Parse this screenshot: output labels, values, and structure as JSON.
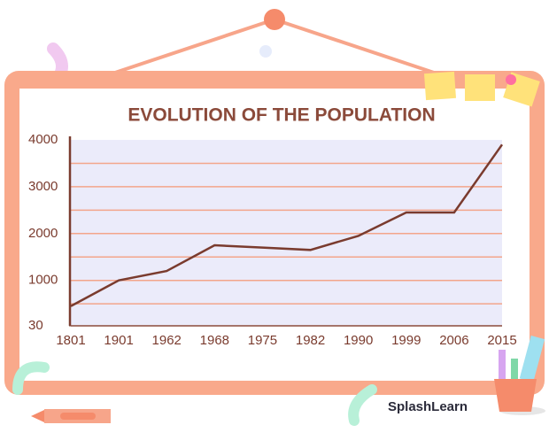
{
  "chart_data": {
    "type": "line",
    "title": "EVOLUTION OF THE POPULATION",
    "categories": [
      "1801",
      "1901",
      "1962",
      "1968",
      "1975",
      "1982",
      "1990",
      "1999",
      "2006",
      "2015"
    ],
    "values": [
      450,
      1000,
      1200,
      1750,
      1700,
      1650,
      1950,
      2450,
      2450,
      3900
    ],
    "color": "#7a3b2e",
    "ylim": [
      30,
      4000
    ],
    "yticks": [
      30,
      1000,
      2000,
      3000,
      4000
    ],
    "grid_lines": [
      500,
      1000,
      1500,
      2000,
      2500,
      3000,
      3500
    ],
    "grid_color": "#f3a58b"
  },
  "brand": "SplashLearn"
}
